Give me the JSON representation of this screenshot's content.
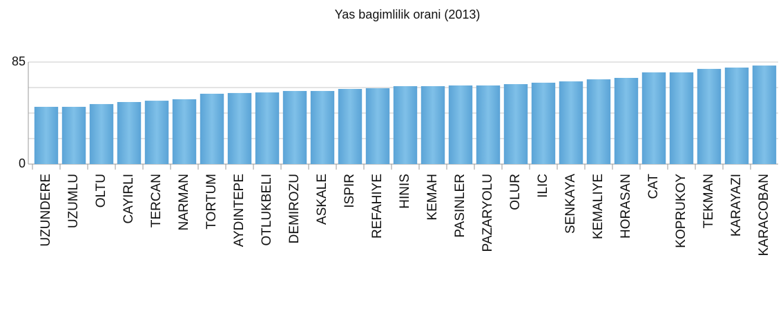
{
  "chart_data": {
    "type": "bar",
    "title": "Yas bagimlilik orani   (2013)",
    "categories": [
      "UZUNDERE",
      "UZUMLU",
      "OLTU",
      "CAYIRLI",
      "TERCAN",
      "NARMAN",
      "TORTUM",
      "AYDINTEPE",
      "OTLUKBELI",
      "DEMIROZU",
      "ASKALE",
      "ISPIR",
      "REFAHIYE",
      "HINIS",
      "KEMAH",
      "PASINLER",
      "PAZARYOLU",
      "OLUR",
      "ILIC",
      "SENKAYA",
      "KEMALIYE",
      "HORASAN",
      "CAT",
      "KOPRUKOY",
      "TEKMAN",
      "KARAYAZI",
      "KARACOBAN"
    ],
    "values": [
      47.7,
      47.7,
      50,
      51.7,
      52.8,
      54,
      58.6,
      59.2,
      59.7,
      60.9,
      60.9,
      62.6,
      63.2,
      64.9,
      64.9,
      65.5,
      65.5,
      66.6,
      67.8,
      68.9,
      70.6,
      71.8,
      76.4,
      76.4,
      79.3,
      80.4,
      82.1
    ],
    "color": "#6aaedb",
    "ylim": [
      0,
      85
    ],
    "yticks": [
      0,
      85
    ],
    "ygrid": [
      0,
      21.25,
      42.5,
      63.75,
      85
    ],
    "grid": true
  }
}
